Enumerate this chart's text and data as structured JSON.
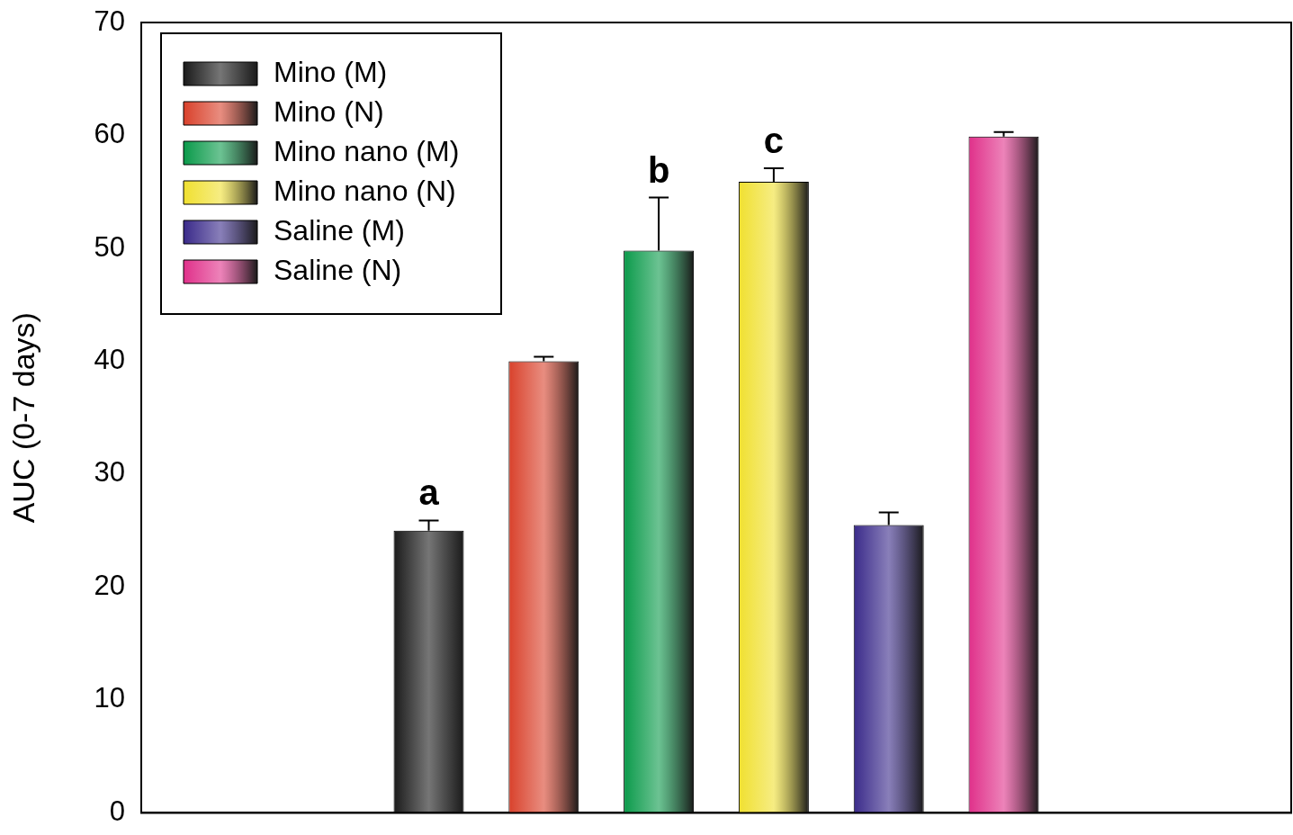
{
  "chart_data": {
    "type": "bar",
    "ylabel": "AUC (0-7 days)",
    "categories": [
      null
    ],
    "series": [
      {
        "name": "Mino (M)",
        "color": "#1a1a1a",
        "values": [
          25.0
        ],
        "errors": [
          [
            25.0,
            25.9
          ]
        ],
        "value_labels": [
          "a"
        ]
      },
      {
        "name": "Mino (N)",
        "color": "#d9412b",
        "values": [
          40.0
        ],
        "errors": [
          [
            40.0,
            40.4
          ]
        ]
      },
      {
        "name": "Mino nano (M)",
        "color": "#0a9a4a",
        "values": [
          49.8
        ],
        "errors": [
          [
            49.8,
            54.5
          ]
        ],
        "value_labels": [
          "b"
        ]
      },
      {
        "name": "Mino nano (N)",
        "color": "#f0e030",
        "values": [
          55.9
        ],
        "errors": [
          [
            55.9,
            57.1
          ]
        ],
        "value_labels": [
          "c"
        ]
      },
      {
        "name": "Saline (M)",
        "color": "#3a2a8a",
        "values": [
          25.5
        ],
        "errors": [
          [
            25.5,
            26.6
          ]
        ]
      },
      {
        "name": "Saline (N)",
        "color": "#e0308a",
        "values": [
          59.9
        ],
        "errors": [
          [
            59.9,
            60.3
          ]
        ]
      }
    ],
    "ylim": [
      0,
      70
    ],
    "yticks": [
      0,
      10,
      20,
      30,
      40,
      50,
      60,
      70
    ],
    "grid": false,
    "legend": "top left"
  }
}
